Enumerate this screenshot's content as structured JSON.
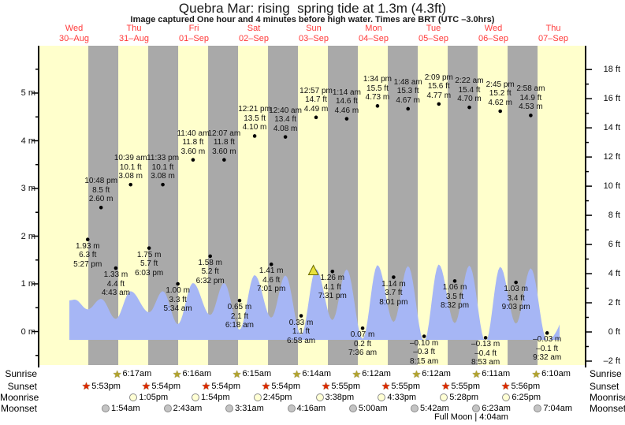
{
  "title": "Quebra Mar: rising  spring tide at 1.3m (4.3ft)",
  "subtitle": "Image captured One hour and 4 minutes before high water. Times are BRT (UTC –3.0hrs)",
  "days": [
    {
      "weekday": "Wed",
      "date": "30–Aug"
    },
    {
      "weekday": "Thu",
      "date": "31–Aug"
    },
    {
      "weekday": "Fri",
      "date": "01–Sep"
    },
    {
      "weekday": "Sat",
      "date": "02–Sep"
    },
    {
      "weekday": "Sun",
      "date": "03–Sep"
    },
    {
      "weekday": "Mon",
      "date": "04–Sep"
    },
    {
      "weekday": "Tue",
      "date": "05–Sep"
    },
    {
      "weekday": "Wed",
      "date": "06–Sep"
    },
    {
      "weekday": "Thu",
      "date": "07–Sep"
    }
  ],
  "axes": {
    "left_labels": [
      "0 m",
      "1 m",
      "2 m",
      "3 m",
      "4 m",
      "5 m"
    ],
    "right_labels": [
      "–2 ft",
      "0 ft",
      "2 ft",
      "4 ft",
      "6 ft",
      "8 ft",
      "10 ft",
      "12 ft",
      "14 ft",
      "16 ft",
      "18 ft"
    ]
  },
  "chart_data": {
    "type": "area",
    "title": "Quebra Mar: rising  spring tide at 1.3m (4.3ft)",
    "x_axis": "days Wed 30-Aug to Thu 07-Sep",
    "ylabel_left": "meters",
    "ylabel_right": "feet",
    "ylim_left_m": [
      -0.8,
      6.0
    ],
    "ylim_right_ft": [
      -2,
      18
    ],
    "tide_events": [
      {
        "day": 0,
        "time": "5:27 pm",
        "m": "1.93",
        "ft": "6.3",
        "type": "low"
      },
      {
        "day": 0,
        "time": "10:48 pm",
        "m": "2.60",
        "ft": "8.5",
        "type": "high"
      },
      {
        "day": 1,
        "time": "4:43 am",
        "m": "1.33",
        "ft": "4.4",
        "type": "low"
      },
      {
        "day": 1,
        "time": "10:39 am",
        "m": "3.08",
        "ft": "10.1",
        "type": "high"
      },
      {
        "day": 1,
        "time": "6:03 pm",
        "m": "1.75",
        "ft": "5.7",
        "type": "low"
      },
      {
        "day": 1,
        "time": "11:33 pm",
        "m": "3.08",
        "ft": "10.1",
        "type": "high"
      },
      {
        "day": 2,
        "time": "5:34 am",
        "m": "1.00",
        "ft": "3.3",
        "type": "low"
      },
      {
        "day": 2,
        "time": "11:40 am",
        "m": "3.60",
        "ft": "11.8",
        "type": "high"
      },
      {
        "day": 2,
        "time": "6:32 pm",
        "m": "1.58",
        "ft": "5.2",
        "type": "low"
      },
      {
        "day": 3,
        "time": "12:07 am",
        "m": "3.60",
        "ft": "11.8",
        "type": "high"
      },
      {
        "day": 3,
        "time": "6:18 am",
        "m": "0.65",
        "ft": "2.1",
        "type": "low"
      },
      {
        "day": 3,
        "time": "12:21 pm",
        "m": "4.10",
        "ft": "13.5",
        "type": "high"
      },
      {
        "day": 3,
        "time": "7:01 pm",
        "m": "1.41",
        "ft": "4.6",
        "type": "low"
      },
      {
        "day": 4,
        "time": "12:40 am",
        "m": "4.08",
        "ft": "13.4",
        "type": "high"
      },
      {
        "day": 4,
        "time": "6:58 am",
        "m": "0.33",
        "ft": "1.1",
        "type": "low"
      },
      {
        "day": 4,
        "time": "12:57 pm",
        "m": "4.49",
        "ft": "14.7",
        "type": "high"
      },
      {
        "day": 4,
        "time": "7:31 pm",
        "m": "1.26",
        "ft": "4.1",
        "type": "low"
      },
      {
        "day": 5,
        "time": "1:14 am",
        "m": "4.46",
        "ft": "14.6",
        "type": "high"
      },
      {
        "day": 5,
        "time": "7:36 am",
        "m": "0.07",
        "ft": "0.2",
        "type": "low"
      },
      {
        "day": 5,
        "time": "1:34 pm",
        "m": "4.73",
        "ft": "15.5",
        "type": "high"
      },
      {
        "day": 5,
        "time": "8:01 pm",
        "m": "1.14",
        "ft": "3.7",
        "type": "low"
      },
      {
        "day": 6,
        "time": "1:48 am",
        "m": "4.67",
        "ft": "15.3",
        "type": "high"
      },
      {
        "day": 6,
        "time": "8:15 am",
        "m": "-0.10",
        "ft": "-0.3",
        "type": "low"
      },
      {
        "day": 6,
        "time": "2:09 pm",
        "m": "4.77",
        "ft": "15.6",
        "type": "high"
      },
      {
        "day": 6,
        "time": "8:32 pm",
        "m": "1.06",
        "ft": "3.5",
        "type": "low"
      },
      {
        "day": 7,
        "time": "2:22 am",
        "m": "4.70",
        "ft": "15.4",
        "type": "high"
      },
      {
        "day": 7,
        "time": "8:53 am",
        "m": "-0.13",
        "ft": "-0.4",
        "type": "low"
      },
      {
        "day": 7,
        "time": "2:45 pm",
        "m": "4.62",
        "ft": "15.2",
        "type": "high"
      },
      {
        "day": 7,
        "time": "9:03 pm",
        "m": "1.03",
        "ft": "3.4",
        "type": "low"
      },
      {
        "day": 8,
        "time": "2:58 am",
        "m": "4.53",
        "ft": "14.9",
        "type": "high"
      },
      {
        "day": 8,
        "time": "9:32 am",
        "m": "-0.03",
        "ft": "-0.1",
        "type": "low"
      }
    ],
    "current_time_marker": {
      "day": 4,
      "time": "11:53 am"
    }
  },
  "astro": {
    "rows": [
      {
        "label": "Sunrise",
        "icon": "sunrise-star-icon",
        "events": [
          {
            "day": 1,
            "time": "6:17am"
          },
          {
            "day": 2,
            "time": "6:16am"
          },
          {
            "day": 3,
            "time": "6:15am"
          },
          {
            "day": 4,
            "time": "6:14am"
          },
          {
            "day": 5,
            "time": "6:12am"
          },
          {
            "day": 6,
            "time": "6:12am"
          },
          {
            "day": 7,
            "time": "6:11am"
          },
          {
            "day": 8,
            "time": "6:10am"
          }
        ]
      },
      {
        "label": "Sunset",
        "icon": "sunset-star-icon",
        "events": [
          {
            "day": 0,
            "time": "5:53pm"
          },
          {
            "day": 1,
            "time": "5:54pm"
          },
          {
            "day": 2,
            "time": "5:54pm"
          },
          {
            "day": 3,
            "time": "5:54pm"
          },
          {
            "day": 4,
            "time": "5:55pm"
          },
          {
            "day": 5,
            "time": "5:55pm"
          },
          {
            "day": 6,
            "time": "5:55pm"
          },
          {
            "day": 7,
            "time": "5:56pm"
          }
        ]
      },
      {
        "label": "Moonrise",
        "icon": "moonrise-circle-icon",
        "events": [
          {
            "day": 1,
            "time": "1:05pm"
          },
          {
            "day": 2,
            "time": "1:54pm"
          },
          {
            "day": 3,
            "time": "2:45pm"
          },
          {
            "day": 4,
            "time": "3:38pm"
          },
          {
            "day": 5,
            "time": "4:33pm"
          },
          {
            "day": 6,
            "time": "5:28pm"
          },
          {
            "day": 7,
            "time": "6:25pm"
          }
        ]
      },
      {
        "label": "Moonset",
        "icon": "moonset-circle-icon",
        "events": [
          {
            "day": 1,
            "time": "1:54am"
          },
          {
            "day": 2,
            "time": "2:43am"
          },
          {
            "day": 3,
            "time": "3:31am"
          },
          {
            "day": 4,
            "time": "4:16am"
          },
          {
            "day": 5,
            "time": "5:00am"
          },
          {
            "day": 6,
            "time": "5:42am"
          },
          {
            "day": 7,
            "time": "6:23am"
          },
          {
            "day": 8,
            "time": "7:04am"
          }
        ]
      }
    ],
    "footer": "Full Moon | 4:04am"
  },
  "colors": {
    "day_stripe": "#ffffcc",
    "night_stripe": "#a9a9a9",
    "tide_fill": "#a6b6f5",
    "day_label_red": "#ff3a3a",
    "marker_yellow": "#e9e23c",
    "sunrise_star": "#b2a42c",
    "sunset_star": "#dd2600",
    "moonrise_circle": "#ffffd4",
    "moonset_circle": "#c4c4c4"
  }
}
